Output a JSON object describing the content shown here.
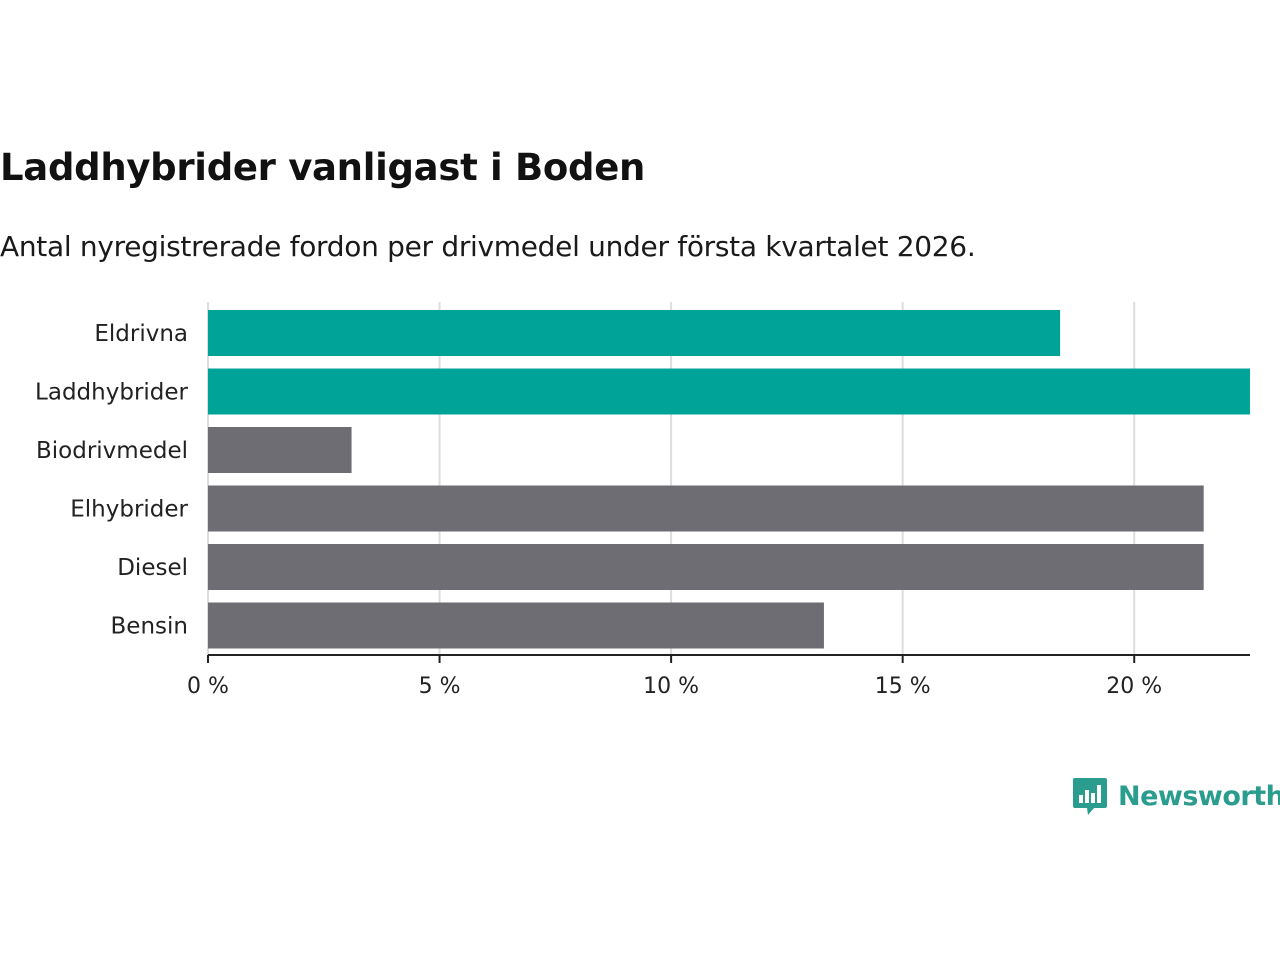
{
  "title": "Laddhybrider vanligast i Boden",
  "subtitle": "Antal nyregistrerade fordon per drivmedel under första kvartalet 2026.",
  "brand": {
    "name": "Newsworthy",
    "icon": "newsworthy-logo-icon"
  },
  "colors": {
    "highlight": "#00a398",
    "default": "#6e6d74",
    "brand": "#2a9d8f"
  },
  "chart_data": {
    "type": "bar",
    "orientation": "horizontal",
    "title": "Laddhybrider vanligast i Boden",
    "subtitle": "Antal nyregistrerade fordon per drivmedel under första kvartalet 2026.",
    "xlabel": "",
    "ylabel": "",
    "xlim": [
      0,
      22.5
    ],
    "grid": true,
    "categories": [
      "Eldrivna",
      "Laddhybrider",
      "Biodrivmedel",
      "Elhybrider",
      "Diesel",
      "Bensin"
    ],
    "values": [
      18.4,
      22.5,
      3.1,
      21.5,
      21.5,
      13.3
    ],
    "highlighted": [
      true,
      true,
      false,
      false,
      false,
      false
    ],
    "ticks": [
      {
        "value": 0,
        "label": "0 %"
      },
      {
        "value": 5,
        "label": "5 %"
      },
      {
        "value": 10,
        "label": "10 %"
      },
      {
        "value": 15,
        "label": "15 %"
      },
      {
        "value": 20,
        "label": "20 %"
      }
    ]
  }
}
